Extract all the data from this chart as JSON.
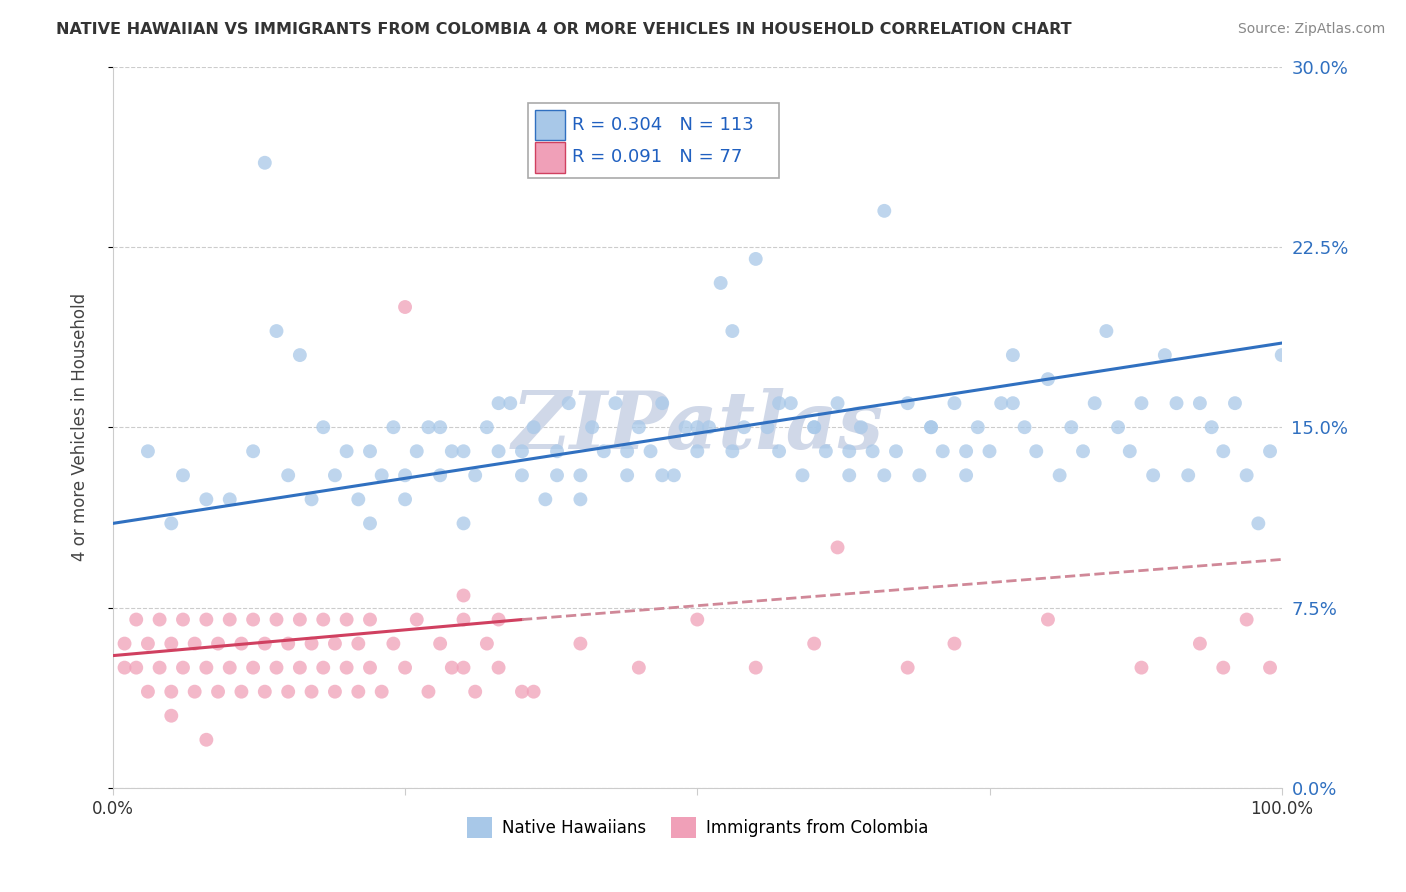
{
  "title": "NATIVE HAWAIIAN VS IMMIGRANTS FROM COLOMBIA 4 OR MORE VEHICLES IN HOUSEHOLD CORRELATION CHART",
  "source": "Source: ZipAtlas.com",
  "ylabel": "4 or more Vehicles in Household",
  "ytick_values": [
    0.0,
    7.5,
    15.0,
    22.5,
    30.0
  ],
  "xlim": [
    0,
    100
  ],
  "ylim": [
    0,
    30
  ],
  "legend_r1": "0.304",
  "legend_n1": "113",
  "legend_r2": "0.091",
  "legend_n2": "77",
  "color_blue": "#A8C8E8",
  "color_pink": "#F0A0B8",
  "line_blue": "#3070C0",
  "line_pink": "#D04060",
  "line_dashed_color": "#D08898",
  "background": "#FFFFFF",
  "grid_color": "#CCCCCC",
  "watermark_color": "#D0D8E8",
  "blue_line_start_y": 11.0,
  "blue_line_end_y": 18.5,
  "pink_line_start_y": 5.5,
  "pink_line_solid_end_x": 35,
  "pink_line_solid_end_y": 7.0,
  "pink_line_dashed_end_y": 9.5,
  "blue_x": [
    3,
    8,
    13,
    14,
    16,
    18,
    19,
    20,
    21,
    22,
    23,
    24,
    25,
    26,
    27,
    28,
    29,
    30,
    31,
    32,
    33,
    34,
    35,
    36,
    37,
    38,
    39,
    40,
    41,
    42,
    43,
    44,
    45,
    46,
    47,
    48,
    49,
    50,
    51,
    52,
    53,
    54,
    55,
    56,
    57,
    58,
    59,
    60,
    61,
    62,
    63,
    64,
    65,
    66,
    67,
    68,
    69,
    70,
    71,
    72,
    73,
    74,
    75,
    76,
    77,
    78,
    79,
    80,
    81,
    82,
    83,
    84,
    85,
    86,
    87,
    88,
    89,
    90,
    91,
    92,
    93,
    94,
    95,
    96,
    97,
    98,
    99,
    100,
    5,
    6,
    10,
    12,
    15,
    17,
    22,
    25,
    28,
    30,
    33,
    35,
    38,
    40,
    44,
    47,
    50,
    53,
    57,
    60,
    63,
    66,
    70,
    73,
    77
  ],
  "blue_y": [
    14,
    12,
    26,
    19,
    18,
    15,
    13,
    14,
    12,
    11,
    13,
    15,
    12,
    14,
    15,
    13,
    14,
    11,
    13,
    15,
    14,
    16,
    13,
    15,
    12,
    14,
    16,
    13,
    15,
    14,
    16,
    13,
    15,
    14,
    16,
    13,
    15,
    14,
    15,
    21,
    19,
    15,
    22,
    15,
    14,
    16,
    13,
    15,
    14,
    16,
    13,
    15,
    14,
    24,
    14,
    16,
    13,
    15,
    14,
    16,
    13,
    15,
    14,
    16,
    18,
    15,
    14,
    17,
    13,
    15,
    14,
    16,
    19,
    15,
    14,
    16,
    13,
    18,
    16,
    13,
    16,
    15,
    14,
    16,
    13,
    11,
    14,
    18,
    11,
    13,
    12,
    14,
    13,
    12,
    14,
    13,
    15,
    14,
    16,
    14,
    13,
    12,
    14,
    13,
    15,
    14,
    16,
    15,
    14,
    13,
    15,
    14,
    16
  ],
  "pink_x": [
    1,
    1,
    2,
    2,
    3,
    3,
    4,
    4,
    5,
    5,
    6,
    6,
    7,
    7,
    8,
    8,
    9,
    9,
    10,
    10,
    11,
    11,
    12,
    12,
    13,
    13,
    14,
    14,
    15,
    15,
    16,
    16,
    17,
    17,
    18,
    18,
    19,
    19,
    20,
    20,
    21,
    21,
    22,
    22,
    23,
    24,
    25,
    26,
    27,
    28,
    29,
    30,
    31,
    32,
    33,
    36,
    40,
    45,
    50,
    55,
    60,
    62,
    68,
    72,
    80,
    88,
    93,
    95,
    97,
    99,
    25,
    30,
    30,
    33,
    35,
    5,
    8
  ],
  "pink_y": [
    5,
    6,
    5,
    7,
    4,
    6,
    5,
    7,
    4,
    6,
    5,
    7,
    4,
    6,
    5,
    7,
    4,
    6,
    5,
    7,
    4,
    6,
    5,
    7,
    4,
    6,
    5,
    7,
    4,
    6,
    5,
    7,
    4,
    6,
    5,
    7,
    4,
    6,
    5,
    7,
    4,
    6,
    5,
    7,
    4,
    6,
    5,
    7,
    4,
    6,
    5,
    7,
    4,
    6,
    5,
    4,
    6,
    5,
    7,
    5,
    6,
    10,
    5,
    6,
    7,
    5,
    6,
    5,
    7,
    5,
    20,
    8,
    5,
    7,
    4,
    3,
    2
  ]
}
